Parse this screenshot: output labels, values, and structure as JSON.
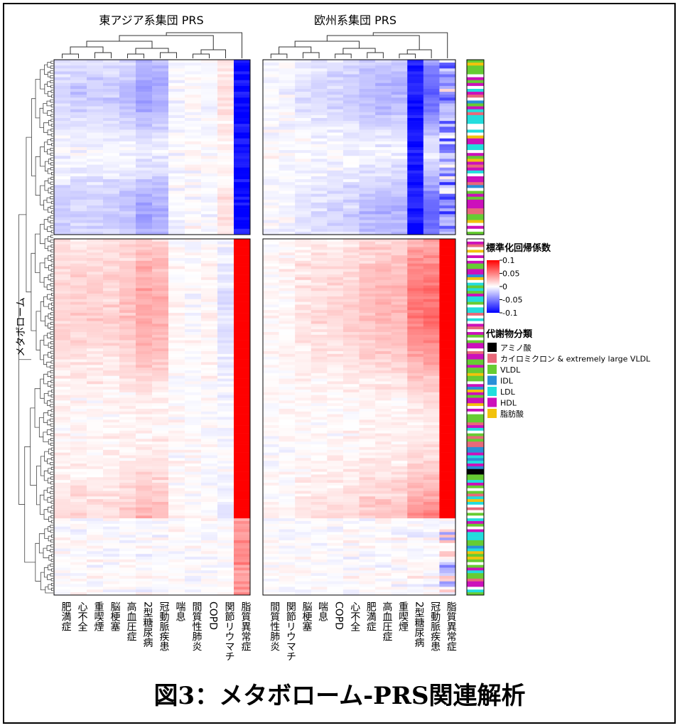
{
  "figure": {
    "caption": "図3：メタボローム-PRS関連解析",
    "row_axis_label": "メタボローム"
  },
  "chart_data": [
    {
      "type": "heatmap",
      "title": "東アジア系集団 PRS",
      "columns": [
        "肥満症",
        "心不全",
        "重喫煙",
        "脳梗塞",
        "高血圧症",
        "2型糖尿病",
        "冠動脈疾患",
        "喘息",
        "間質性肺炎",
        "COPD",
        "関節リウマチ",
        "脂質異常症"
      ],
      "row_blocks": [
        "upper",
        "lower"
      ]
    },
    {
      "type": "heatmap",
      "title": "欧州系集団 PRS",
      "columns": [
        "間質性肺炎",
        "関節リウマチ",
        "脳梗塞",
        "喘息",
        "COPD",
        "心不全",
        "肥満症",
        "高血圧症",
        "重喫煙",
        "2型糖尿病",
        "冠動脈疾患",
        "脂質異常症"
      ],
      "row_blocks": [
        "upper",
        "lower"
      ]
    }
  ],
  "colorbar": {
    "title": "標準化回帰係数",
    "range": [
      -0.1,
      0.1
    ],
    "ticks": [
      {
        "value": 0.1,
        "label": "0.1"
      },
      {
        "value": 0.05,
        "label": "0.05"
      },
      {
        "value": 0,
        "label": "0"
      },
      {
        "value": -0.05,
        "label": "-0.05"
      },
      {
        "value": -0.1,
        "label": "-0.1"
      }
    ],
    "high_color": "#ff0000",
    "mid_color": "#ffffff",
    "low_color": "#0000ff"
  },
  "category_legend": {
    "title": "代謝物分類",
    "items": [
      {
        "label": "アミノ酸",
        "color": "#000000"
      },
      {
        "label": "カイロミクロン & extremely large VLDL",
        "color": "#e8697a"
      },
      {
        "label": "VLDL",
        "color": "#66cc33"
      },
      {
        "label": "IDL",
        "color": "#2a8fd8"
      },
      {
        "label": "LDL",
        "color": "#22dddd"
      },
      {
        "label": "HDL",
        "color": "#cc10bb"
      },
      {
        "label": "脂肪酸",
        "color": "#f2c20c"
      }
    ]
  }
}
